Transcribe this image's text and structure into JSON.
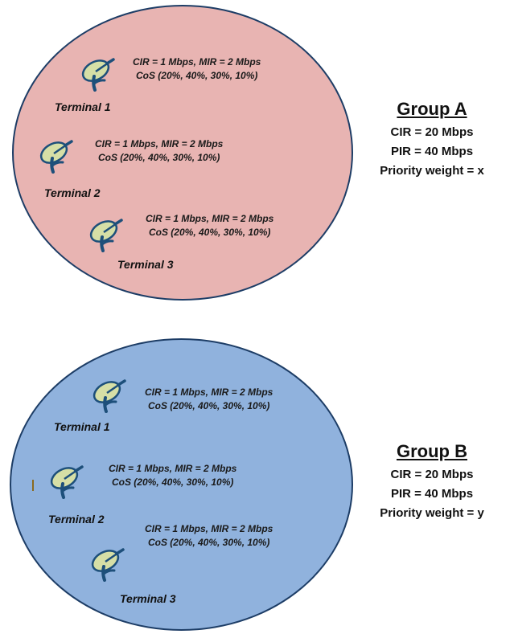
{
  "groups": [
    {
      "title": "Group A",
      "cir": "CIR = 20 Mbps",
      "pir": "PIR = 40 Mbps",
      "priority": "Priority weight = x",
      "fill": "#e8b4b2",
      "terminals": [
        {
          "label": "Terminal 1",
          "rates": "CIR = 1 Mbps, MIR = 2 Mbps",
          "cos": "CoS (20%, 40%, 30%, 10%)"
        },
        {
          "label": "Terminal 2",
          "rates": "CIR = 1 Mbps, MIR = 2 Mbps",
          "cos": "CoS (20%, 40%, 30%, 10%)"
        },
        {
          "label": "Terminal 3",
          "rates": "CIR = 1 Mbps, MIR = 2 Mbps",
          "cos": "CoS (20%, 40%, 30%, 10%)"
        }
      ]
    },
    {
      "title": "Group B",
      "cir": "CIR = 20 Mbps",
      "pir": "PIR = 40 Mbps",
      "priority": "Priority weight = y",
      "fill": "#90b2dd",
      "terminals": [
        {
          "label": "Terminal 1",
          "rates": "CIR = 1 Mbps, MIR = 2 Mbps",
          "cos": "CoS (20%, 40%, 30%, 10%)"
        },
        {
          "label": "Terminal 2",
          "rates": "CIR = 1 Mbps, MIR = 2 Mbps",
          "cos": "CoS (20%, 40%, 30%, 10%)"
        },
        {
          "label": "Terminal 3",
          "rates": "CIR = 1 Mbps, MIR = 2 Mbps",
          "cos": "CoS (20%, 40%, 30%, 10%)"
        }
      ]
    }
  ],
  "icons": {
    "terminal": "satellite-dish-icon"
  },
  "colors": {
    "dish_fill": "#d6dfa6",
    "dish_stroke": "#1d4f7a",
    "outline": "#1d3d66"
  }
}
